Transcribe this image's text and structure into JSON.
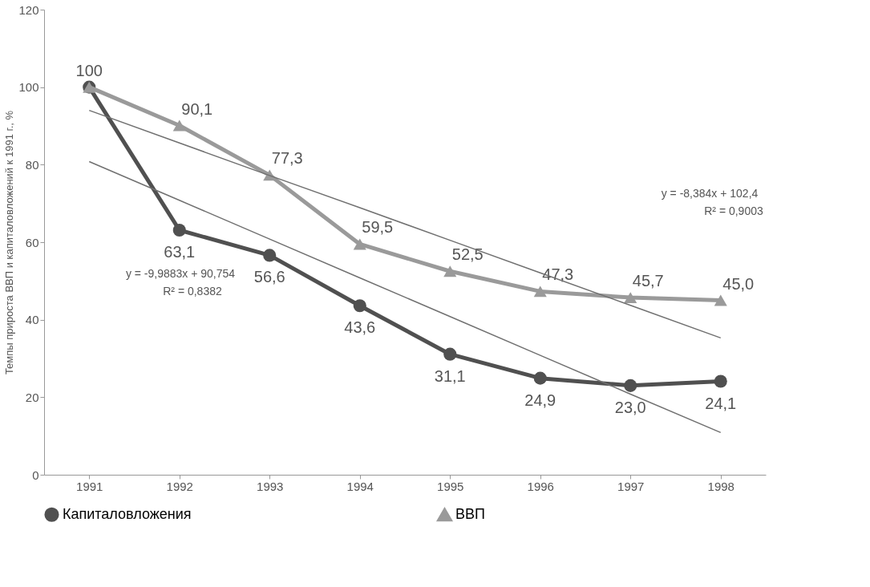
{
  "chart_data": {
    "type": "line",
    "ylabel": "Темпы прироста ВВП и капиталовложений к 1991 г., %",
    "categories": [
      "1991",
      "1992",
      "1993",
      "1994",
      "1995",
      "1996",
      "1997",
      "1998"
    ],
    "ylim": [
      0,
      120
    ],
    "yticks": [
      0,
      20,
      40,
      60,
      80,
      100,
      120
    ],
    "grid": false,
    "legend": "bottom",
    "line_style": "solid",
    "series": [
      {
        "name": "Капиталовложения",
        "color": "#505050",
        "marker": "circle",
        "values": [
          100,
          63.1,
          56.6,
          43.6,
          31.1,
          24.9,
          23.0,
          24.1
        ],
        "value_labels": [
          "100",
          "63,1",
          "56,6",
          "43,6",
          "31,1",
          "24,9",
          "23,0",
          "24,1"
        ]
      },
      {
        "name": "ВВП",
        "color": "#9a9a9a",
        "marker": "triangle",
        "values": [
          100,
          90.1,
          77.3,
          59.5,
          52.5,
          47.3,
          45.7,
          45.0
        ],
        "value_labels": [
          null,
          "90,1",
          "77,3",
          "59,5",
          "52,5",
          "47,3",
          "45,7",
          "45,0"
        ]
      },
      {
        "type": "line",
        "color": "#707070",
        "values": [
          80.8,
          70.8,
          60.8,
          50.8,
          40.8,
          30.8,
          20.8,
          10.9
        ]
      },
      {
        "type": "line",
        "color": "#707070",
        "values": [
          94.0,
          85.6,
          77.2,
          68.9,
          60.5,
          52.1,
          43.7,
          35.3
        ]
      }
    ],
    "annotations": [
      "y = -9,9883x + 90,754",
      "R² = 0,8382",
      "y = -8,384x + 102,4",
      "R² = 0,9003"
    ]
  }
}
